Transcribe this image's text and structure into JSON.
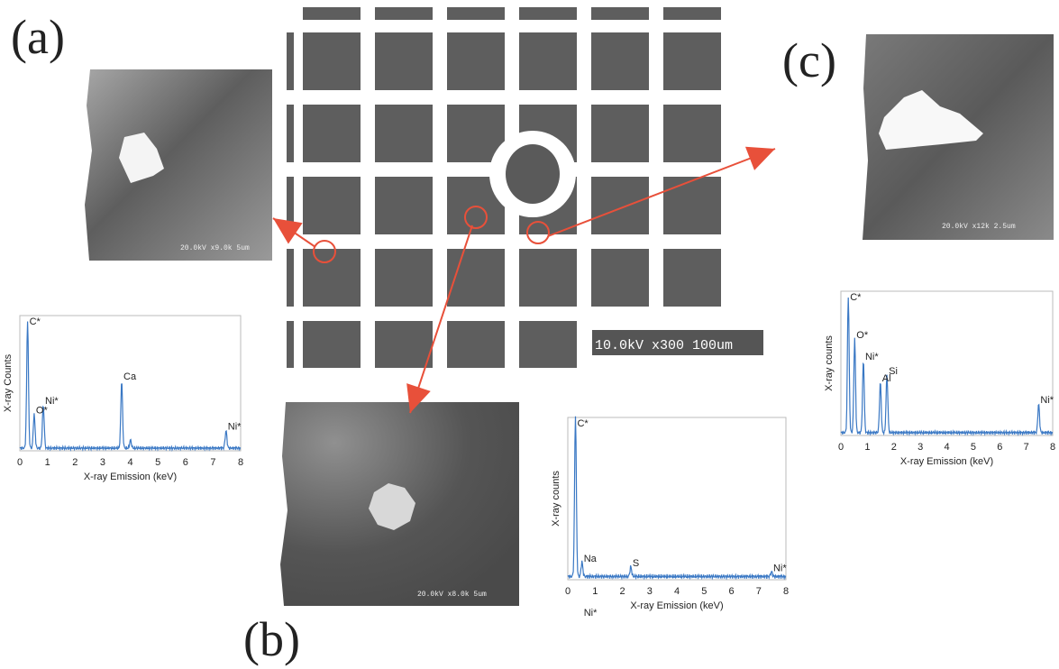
{
  "labels": {
    "a": "(a)",
    "b": "(b)",
    "c": "(c)"
  },
  "grid_image": {
    "scale_bar": "10.0kV x300 100um"
  },
  "sem_images": {
    "a": {
      "scale_bar": "20.0kV x9.0k 5um"
    },
    "b": {
      "scale_bar": "20.0kV x8.0k 5um"
    },
    "c": {
      "scale_bar": "20.0kV x12k 2.5um"
    }
  },
  "colors": {
    "arrow": "#e8503a",
    "spectrum_line": "#3a78c4"
  },
  "chart_data": [
    {
      "id": "a",
      "type": "line",
      "xlabel": "X-ray Emission (keV)",
      "ylabel": "X-ray Counts",
      "xlim": [
        0,
        8
      ],
      "ylim": [
        0,
        100
      ],
      "xticks": [
        "0",
        "1",
        "2",
        "3",
        "4",
        "5",
        "6",
        "7",
        "8"
      ],
      "peaks": [
        {
          "x": 0.28,
          "y": 95
        },
        {
          "x": 0.52,
          "y": 25
        },
        {
          "x": 0.85,
          "y": 32
        },
        {
          "x": 3.69,
          "y": 50
        },
        {
          "x": 4.01,
          "y": 6
        },
        {
          "x": 7.47,
          "y": 13
        }
      ],
      "annotations": [
        {
          "text": "C*",
          "x": 0.28,
          "y": 95
        },
        {
          "text": "O*",
          "x": 0.52,
          "y": 25
        },
        {
          "text": "Ni*",
          "x": 0.85,
          "y": 32
        },
        {
          "text": "Ca",
          "x": 3.69,
          "y": 50
        },
        {
          "text": "Ni*",
          "x": 7.47,
          "y": 13
        }
      ]
    },
    {
      "id": "b",
      "type": "line",
      "xlabel": "X-ray Emission (keV)",
      "ylabel": "X-ray counts",
      "xlim": [
        0,
        8
      ],
      "ylim": [
        0,
        100
      ],
      "xticks": [
        "0",
        "1",
        "2",
        "3",
        "4",
        "5",
        "6",
        "7",
        "8"
      ],
      "peaks": [
        {
          "x": 0.28,
          "y": 100
        },
        {
          "x": 0.52,
          "y": 9
        },
        {
          "x": 2.31,
          "y": 6
        },
        {
          "x": 7.47,
          "y": 3
        }
      ],
      "annotations": [
        {
          "text": "C*",
          "x": 0.28,
          "y": 100
        },
        {
          "text": "Na",
          "x": 0.52,
          "y": 9
        },
        {
          "text": "Ni*",
          "x": 0.52,
          "y": 9
        },
        {
          "text": "S",
          "x": 2.31,
          "y": 6
        },
        {
          "text": "Ni*",
          "x": 7.47,
          "y": 3
        }
      ]
    },
    {
      "id": "c",
      "type": "line",
      "xlabel": "X-ray Emission (keV)",
      "ylabel": "X-ray counts",
      "xlim": [
        0,
        8
      ],
      "ylim": [
        0,
        100
      ],
      "xticks": [
        "0",
        "1",
        "2",
        "3",
        "4",
        "5",
        "6",
        "7",
        "8"
      ],
      "peaks": [
        {
          "x": 0.28,
          "y": 95
        },
        {
          "x": 0.52,
          "y": 65
        },
        {
          "x": 0.85,
          "y": 50
        },
        {
          "x": 1.49,
          "y": 35
        },
        {
          "x": 1.74,
          "y": 40
        },
        {
          "x": 7.47,
          "y": 20
        }
      ],
      "annotations": [
        {
          "text": "C*",
          "x": 0.28,
          "y": 95
        },
        {
          "text": "O*",
          "x": 0.52,
          "y": 65
        },
        {
          "text": "Ni*",
          "x": 0.85,
          "y": 50
        },
        {
          "text": "Al",
          "x": 1.49,
          "y": 35
        },
        {
          "text": "Si",
          "x": 1.74,
          "y": 40
        },
        {
          "text": "Ni*",
          "x": 7.47,
          "y": 20
        }
      ]
    }
  ]
}
